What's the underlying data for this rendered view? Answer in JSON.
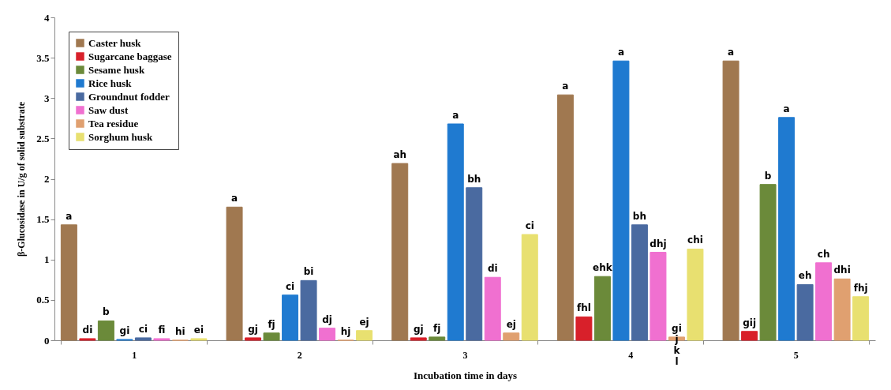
{
  "chart_data": {
    "type": "bar",
    "xlabel": "Incubation time in days",
    "ylabel": "β-Glucosidase in U/g of solid substrate",
    "categories": [
      "1",
      "2",
      "3",
      "4",
      "5"
    ],
    "series": [
      {
        "name": "Caster husk",
        "color": "#a07850",
        "values": [
          1.43,
          1.65,
          2.19,
          3.04,
          3.46
        ],
        "value_labels": [
          "a",
          "a",
          "ah",
          "a",
          "a"
        ]
      },
      {
        "name": "Sugarcane baggase",
        "color": "#d8202a",
        "values": [
          0.02,
          0.03,
          0.03,
          0.29,
          0.11
        ],
        "value_labels": [
          "di",
          "gj",
          "gj",
          "fhl",
          "gij"
        ]
      },
      {
        "name": "Sesame husk",
        "color": "#6b8a3a",
        "values": [
          0.24,
          0.09,
          0.04,
          0.79,
          1.93
        ],
        "value_labels": [
          "b",
          "fj",
          "fj",
          "ehk",
          "b"
        ]
      },
      {
        "name": "Rice husk",
        "color": "#1f7ad0",
        "values": [
          0.01,
          0.56,
          2.68,
          3.46,
          2.76
        ],
        "value_labels": [
          "gi",
          "ci",
          "a",
          "a",
          "a"
        ]
      },
      {
        "name": "Groundnut fodder",
        "color": "#4a6aa0",
        "values": [
          0.03,
          0.74,
          1.89,
          1.43,
          0.69
        ],
        "value_labels": [
          "ci",
          "bi",
          "bh",
          "bh",
          "eh"
        ]
      },
      {
        "name": "Saw dust",
        "color": "#f070d0",
        "values": [
          0.02,
          0.15,
          0.78,
          1.09,
          0.96
        ],
        "value_labels": [
          "fi",
          "dj",
          "di",
          "dhj",
          "ch"
        ]
      },
      {
        "name": "Tea residue",
        "color": "#e0a070",
        "values": [
          0,
          0,
          0.09,
          0.04,
          0.76
        ],
        "value_labels": [
          "hi",
          "hj",
          "ej",
          "gi j k l",
          "dhi"
        ]
      },
      {
        "name": "Sorghum husk",
        "color": "#e8e070",
        "values": [
          0.02,
          0.12,
          1.31,
          1.13,
          0.54
        ],
        "value_labels": [
          "ei",
          "ej",
          "ci",
          "chi",
          "fhj"
        ]
      }
    ],
    "ylim": [
      0,
      4
    ],
    "yticks": [
      0,
      0.5,
      1,
      1.5,
      2,
      2.5,
      3,
      3.5,
      4
    ],
    "grid": false,
    "legend": "top left"
  }
}
